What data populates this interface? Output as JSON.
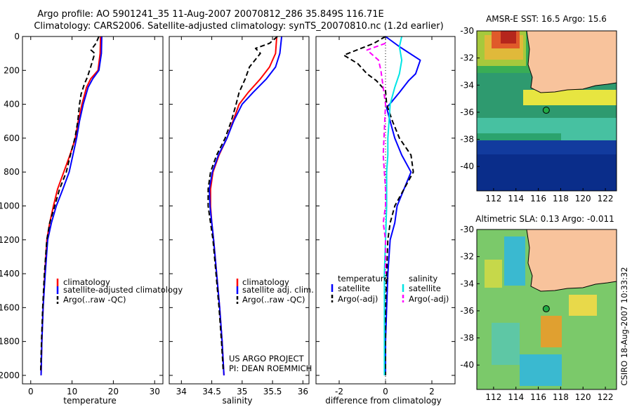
{
  "title_line1": "Argo profile: AO 5901241_35 11-Aug-2007 20070812_286 35.849S 116.71E",
  "title_line2": "Climatology: CARS2006. Satellite-adjusted climatology: synTS_20070810.nc (1.2d earlier)",
  "side_label": "CSIRO 18-Aug-2007 10:33:32",
  "colors": {
    "clim": "#ff0000",
    "sat": "#0000ff",
    "argo": "#000000",
    "sal_sat": "#00e5e5",
    "sal_argo": "#ff00ff",
    "land": "#f8c39c"
  },
  "chart_data": [
    {
      "type": "line",
      "id": "temperature",
      "xlabel": "temperature",
      "xlim": [
        -2,
        32
      ],
      "ylim": [
        2050,
        0
      ],
      "xticks": [
        0,
        10,
        20,
        30
      ],
      "yticks": [
        0,
        200,
        400,
        600,
        800,
        1000,
        1200,
        1400,
        1600,
        1800,
        2000
      ],
      "legend": [
        "climatology",
        "satellite-adjusted climatology",
        "Argo(..raw -QC)"
      ],
      "series": [
        {
          "name": "climatology",
          "style": "clim",
          "points": [
            [
              16.9,
              0
            ],
            [
              16.8,
              100
            ],
            [
              16.3,
              200
            ],
            [
              14.5,
              250
            ],
            [
              13.5,
              300
            ],
            [
              12.4,
              400
            ],
            [
              11.5,
              500
            ],
            [
              10.8,
              600
            ],
            [
              9.5,
              700
            ],
            [
              8.0,
              800
            ],
            [
              6.5,
              900
            ],
            [
              5.5,
              1000
            ],
            [
              4.6,
              1100
            ],
            [
              3.9,
              1200
            ],
            [
              3.4,
              1400
            ],
            [
              3.0,
              1600
            ],
            [
              2.7,
              1800
            ],
            [
              2.5,
              2000
            ]
          ]
        },
        {
          "name": "satellite-adjusted climatology",
          "style": "sat",
          "points": [
            [
              17.2,
              0
            ],
            [
              17.1,
              100
            ],
            [
              16.5,
              200
            ],
            [
              15.0,
              250
            ],
            [
              13.9,
              300
            ],
            [
              12.7,
              400
            ],
            [
              11.8,
              500
            ],
            [
              11.1,
              600
            ],
            [
              10.2,
              700
            ],
            [
              9.3,
              800
            ],
            [
              7.8,
              900
            ],
            [
              6.2,
              1000
            ],
            [
              5.0,
              1100
            ],
            [
              4.1,
              1200
            ],
            [
              3.5,
              1400
            ],
            [
              3.0,
              1600
            ],
            [
              2.7,
              1800
            ],
            [
              2.5,
              2000
            ]
          ]
        },
        {
          "name": "Argo(..raw -QC)",
          "style": "argo",
          "points": [
            [
              16.5,
              0
            ],
            [
              15.8,
              40
            ],
            [
              14.6,
              80
            ],
            [
              15.5,
              100
            ],
            [
              15.0,
              140
            ],
            [
              14.5,
              180
            ],
            [
              13.7,
              240
            ],
            [
              13.0,
              280
            ],
            [
              12.2,
              340
            ],
            [
              11.8,
              400
            ],
            [
              11.4,
              500
            ],
            [
              10.7,
              600
            ],
            [
              9.6,
              700
            ],
            [
              8.6,
              800
            ],
            [
              7.0,
              900
            ],
            [
              5.8,
              1000
            ],
            [
              4.6,
              1100
            ],
            [
              3.9,
              1200
            ],
            [
              3.3,
              1400
            ],
            [
              2.9,
              1600
            ],
            [
              2.6,
              1800
            ],
            [
              2.4,
              1980
            ]
          ]
        }
      ]
    },
    {
      "type": "line",
      "id": "salinity",
      "xlabel": "salinity",
      "xlim": [
        33.8,
        36.1
      ],
      "ylim": [
        2050,
        0
      ],
      "xticks": [
        34,
        34.5,
        35,
        35.5,
        36
      ],
      "xtick_labels": [
        "34",
        "34.5",
        "35",
        "35.5",
        "36"
      ],
      "legend": [
        "climatology",
        "satellite adj. clim.",
        "Argo(..raw -QC)"
      ],
      "annotation": [
        "US ARGO PROJECT",
        "PI: DEAN ROEMMICH"
      ],
      "series": [
        {
          "name": "climatology",
          "style": "clim",
          "points": [
            [
              35.57,
              0
            ],
            [
              35.55,
              100
            ],
            [
              35.45,
              180
            ],
            [
              35.3,
              250
            ],
            [
              35.1,
              330
            ],
            [
              34.95,
              400
            ],
            [
              34.85,
              500
            ],
            [
              34.75,
              600
            ],
            [
              34.62,
              700
            ],
            [
              34.52,
              800
            ],
            [
              34.48,
              900
            ],
            [
              34.48,
              1000
            ],
            [
              34.5,
              1100
            ],
            [
              34.53,
              1200
            ],
            [
              34.58,
              1400
            ],
            [
              34.63,
              1600
            ],
            [
              34.67,
              1800
            ],
            [
              34.7,
              2000
            ]
          ]
        },
        {
          "name": "satellite adj. clim.",
          "style": "sat",
          "points": [
            [
              35.65,
              0
            ],
            [
              35.62,
              100
            ],
            [
              35.55,
              180
            ],
            [
              35.4,
              250
            ],
            [
              35.18,
              330
            ],
            [
              35.0,
              400
            ],
            [
              34.86,
              500
            ],
            [
              34.75,
              600
            ],
            [
              34.61,
              700
            ],
            [
              34.51,
              800
            ],
            [
              34.46,
              900
            ],
            [
              34.47,
              1000
            ],
            [
              34.5,
              1100
            ],
            [
              34.53,
              1200
            ],
            [
              34.58,
              1400
            ],
            [
              34.63,
              1600
            ],
            [
              34.67,
              1800
            ],
            [
              34.7,
              2000
            ]
          ]
        },
        {
          "name": "Argo(..raw -QC)",
          "style": "argo",
          "points": [
            [
              35.58,
              0
            ],
            [
              35.45,
              40
            ],
            [
              35.22,
              70
            ],
            [
              35.3,
              100
            ],
            [
              35.12,
              180
            ],
            [
              35.05,
              250
            ],
            [
              34.95,
              330
            ],
            [
              34.9,
              400
            ],
            [
              34.82,
              500
            ],
            [
              34.72,
              600
            ],
            [
              34.58,
              700
            ],
            [
              34.48,
              800
            ],
            [
              34.44,
              900
            ],
            [
              34.44,
              1000
            ],
            [
              34.48,
              1100
            ],
            [
              34.52,
              1200
            ],
            [
              34.57,
              1400
            ],
            [
              34.62,
              1600
            ],
            [
              34.66,
              1800
            ],
            [
              34.69,
              1980
            ]
          ]
        }
      ]
    },
    {
      "type": "line",
      "id": "difference",
      "xlabel": "difference from climatology",
      "xlim": [
        -3,
        3
      ],
      "ylim": [
        2050,
        0
      ],
      "xticks": [
        -2,
        0,
        2
      ],
      "legend_cols": [
        {
          "header": "temperature",
          "items": [
            "satellite",
            "Argo(-adj)"
          ]
        },
        {
          "header": "salinity",
          "items": [
            "satellite",
            "Argo(-adj)"
          ]
        }
      ],
      "series": [
        {
          "name": "temperature satellite",
          "style": "sat",
          "points": [
            [
              0,
              0
            ],
            [
              0.6,
              60
            ],
            [
              1.5,
              140
            ],
            [
              1.3,
              220
            ],
            [
              1.0,
              260
            ],
            [
              0.6,
              330
            ],
            [
              0.3,
              380
            ],
            [
              0.05,
              420
            ],
            [
              0.2,
              500
            ],
            [
              0.4,
              600
            ],
            [
              0.7,
              700
            ],
            [
              1.1,
              800
            ],
            [
              0.8,
              900
            ],
            [
              0.5,
              1000
            ],
            [
              0.4,
              1100
            ],
            [
              0.2,
              1200
            ],
            [
              0.1,
              1400
            ],
            [
              0.05,
              1600
            ],
            [
              0,
              1800
            ],
            [
              0,
              2000
            ]
          ]
        },
        {
          "name": "temperature Argo(-adj)",
          "style": "argo",
          "points": [
            [
              0,
              0
            ],
            [
              -0.5,
              40
            ],
            [
              -1.8,
              110
            ],
            [
              -1.2,
              160
            ],
            [
              -0.8,
              220
            ],
            [
              -0.4,
              260
            ],
            [
              0,
              320
            ],
            [
              0.05,
              400
            ],
            [
              0.3,
              500
            ],
            [
              0.6,
              600
            ],
            [
              1.1,
              700
            ],
            [
              1.2,
              800
            ],
            [
              0.8,
              900
            ],
            [
              0.4,
              1000
            ],
            [
              0.2,
              1100
            ],
            [
              0.1,
              1200
            ],
            [
              0.05,
              1400
            ],
            [
              0,
              1600
            ],
            [
              0,
              1800
            ],
            [
              0,
              2000
            ]
          ]
        },
        {
          "name": "salinity satellite",
          "style": "sal_sat",
          "points": [
            [
              0.7,
              0
            ],
            [
              0.6,
              60
            ],
            [
              0.7,
              140
            ],
            [
              0.6,
              220
            ],
            [
              0.4,
              300
            ],
            [
              0.2,
              400
            ],
            [
              0.15,
              500
            ],
            [
              0.1,
              600
            ],
            [
              0.1,
              700
            ],
            [
              0.05,
              800
            ],
            [
              0.05,
              1000
            ],
            [
              0,
              1200
            ],
            [
              -0.05,
              1400
            ],
            [
              -0.05,
              1600
            ],
            [
              -0.05,
              1800
            ],
            [
              -0.05,
              2000
            ]
          ]
        },
        {
          "name": "salinity Argo(-adj)",
          "style": "sal_argo",
          "points": [
            [
              0,
              40
            ],
            [
              -0.8,
              80
            ],
            [
              -0.3,
              140
            ],
            [
              -0.2,
              200
            ],
            [
              0,
              400
            ],
            [
              -0.1,
              700
            ],
            [
              0,
              900
            ],
            [
              0,
              1000
            ],
            [
              -0.1,
              1100
            ],
            [
              0,
              1200
            ],
            [
              0,
              1400
            ]
          ]
        }
      ]
    }
  ],
  "maps": [
    {
      "title": "AMSR-E SST: 16.5 Argo: 15.6",
      "xlim": [
        110.5,
        123
      ],
      "ylim": [
        -41.8,
        -30
      ],
      "xticks": [
        112,
        114,
        116,
        118,
        120,
        122
      ],
      "yticks": [
        -30,
        -32,
        -34,
        -36,
        -38,
        -40
      ],
      "argo_lon": 116.71,
      "argo_lat": -35.85
    },
    {
      "title": "Altimetric SLA: 0.13 Argo: -0.011",
      "xlim": [
        110.5,
        123
      ],
      "ylim": [
        -41.8,
        -30
      ],
      "xticks": [
        112,
        114,
        116,
        118,
        120,
        122
      ],
      "yticks": [
        -30,
        -32,
        -34,
        -36,
        -38,
        -40
      ],
      "argo_lon": 116.71,
      "argo_lat": -35.85
    }
  ]
}
